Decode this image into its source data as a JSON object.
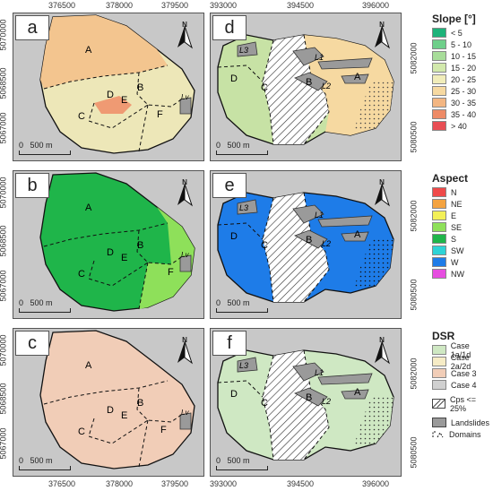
{
  "panels": {
    "a": {
      "label": "a",
      "regions": [
        "A",
        "B",
        "C",
        "D",
        "E",
        "F",
        "Lv"
      ],
      "scale": {
        "zero": "0",
        "dist": "500 m"
      }
    },
    "b": {
      "label": "b",
      "regions": [
        "A",
        "B",
        "C",
        "D",
        "E",
        "F",
        "Lv"
      ],
      "scale": {
        "zero": "0",
        "dist": "500 m"
      }
    },
    "c": {
      "label": "c",
      "regions": [
        "A",
        "B",
        "C",
        "D",
        "E",
        "F",
        "Lv"
      ],
      "scale": {
        "zero": "0",
        "dist": "500 m"
      }
    },
    "d": {
      "label": "d",
      "regions": [
        "A",
        "B",
        "C",
        "D",
        "L1",
        "L2",
        "L3"
      ],
      "scale": {
        "zero": "0",
        "dist": "500 m"
      }
    },
    "e": {
      "label": "e",
      "regions": [
        "A",
        "B",
        "C",
        "D",
        "L1",
        "L2",
        "L3"
      ],
      "scale": {
        "zero": "0",
        "dist": "500 m"
      }
    },
    "f": {
      "label": "f",
      "regions": [
        "A",
        "B",
        "C",
        "D",
        "L1",
        "L2",
        "L3"
      ],
      "scale": {
        "zero": "0",
        "dist": "500 m"
      }
    }
  },
  "north_label": "N",
  "axes": {
    "left_x_ticks": [
      "376500",
      "378000",
      "379500"
    ],
    "left_y_ticks": [
      "5070000",
      "5068500",
      "5067000"
    ],
    "right_x_ticks": [
      "393000",
      "394500",
      "396000"
    ],
    "right_y_ticks": [
      "5082000",
      "5080500"
    ]
  },
  "legends": {
    "slope": {
      "title": "Slope [°]",
      "items": [
        {
          "label": "< 5",
          "color": "#1db37a"
        },
        {
          "label": "5 - 10",
          "color": "#6fcf8a"
        },
        {
          "label": "10 - 15",
          "color": "#a8dd9a"
        },
        {
          "label": "15 - 20",
          "color": "#d2e9ac"
        },
        {
          "label": "20 - 25",
          "color": "#f1edba"
        },
        {
          "label": "25 - 30",
          "color": "#f6d9a1"
        },
        {
          "label": "30 - 35",
          "color": "#f3b682"
        },
        {
          "label": "35 - 40",
          "color": "#ee8b67"
        },
        {
          "label": "> 40",
          "color": "#e84e54"
        }
      ]
    },
    "aspect": {
      "title": "Aspect",
      "items": [
        {
          "label": "N",
          "color": "#ef4a4a"
        },
        {
          "label": "NE",
          "color": "#f4a340"
        },
        {
          "label": "E",
          "color": "#f3f058"
        },
        {
          "label": "SE",
          "color": "#8ee05a"
        },
        {
          "label": "S",
          "color": "#1fb54a"
        },
        {
          "label": "SW",
          "color": "#2ed3d6"
        },
        {
          "label": "W",
          "color": "#1e7ce8"
        },
        {
          "label": "NW",
          "color": "#e64ee0"
        }
      ]
    },
    "dsr": {
      "title": "DSR",
      "items": [
        {
          "label": "Case 1a/1d",
          "color": "#cfe8c3"
        },
        {
          "label": "Case 2a/2d",
          "color": "#f6ecc6"
        },
        {
          "label": "Case 3",
          "color": "#f1cdb7"
        },
        {
          "label": "Case 4",
          "color": "#d0d0d0"
        }
      ],
      "cps_label": "Cps <= 25%",
      "landslides_label": "Landslides",
      "domains_label": "Domains"
    }
  },
  "colors": {
    "slope_fill_a": "#f3c58f",
    "slope_fill_main": "#ede7b8",
    "slope_fill_e": "#ef9a73",
    "aspect_s": "#1fb54a",
    "aspect_se": "#8ee05a",
    "aspect_w": "#1e7ce8",
    "dsr_case3": "#f1cdb7",
    "dsr_case1": "#cfe8c3",
    "landslide": "#9a9a9a"
  }
}
